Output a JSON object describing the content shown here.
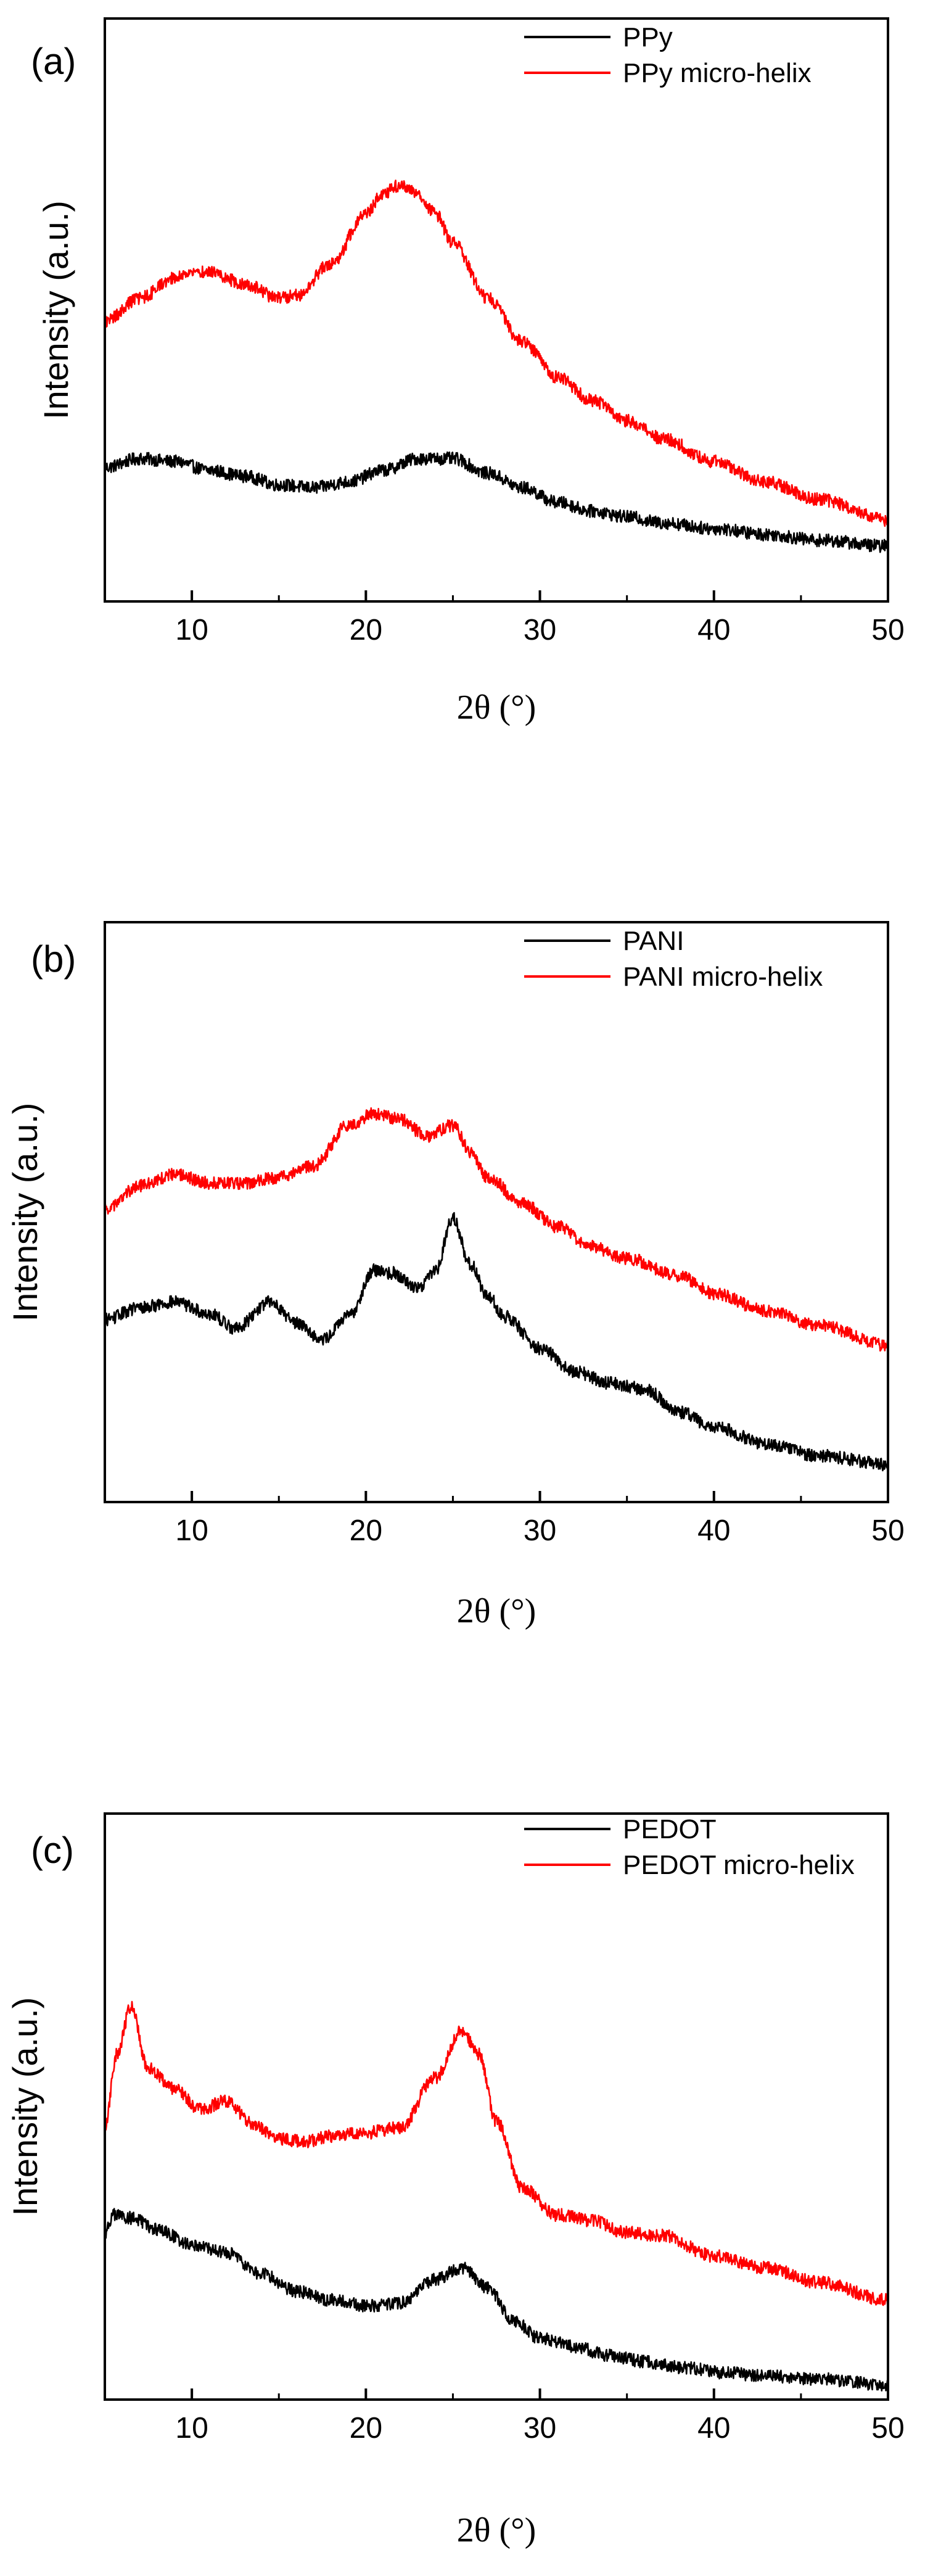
{
  "chart_data": [
    {
      "type": "line",
      "panel_label": "(a)",
      "xlabel": "2θ (°)",
      "ylabel": "Intensity (a.u.)",
      "xlim": [
        5,
        50
      ],
      "ylim": [
        0,
        100
      ],
      "xticks": [
        10,
        20,
        30,
        40,
        50
      ],
      "yticks_visible": false,
      "legend_position": "top-right",
      "series": [
        {
          "name": "PPy",
          "color": "#000000",
          "x": [
            5,
            7,
            9,
            11,
            13,
            15,
            17,
            19,
            21,
            23,
            24,
            25,
            27,
            29,
            31,
            33,
            35,
            37,
            40,
            43,
            46,
            50
          ],
          "y": [
            23,
            24.5,
            24,
            22.5,
            21.5,
            20,
            19.5,
            20.5,
            22.5,
            24.5,
            24.5,
            24.5,
            22,
            19.5,
            17,
            15.5,
            14.5,
            13.5,
            12.5,
            11.5,
            10.5,
            9.5
          ]
        },
        {
          "name": "PPy micro-helix",
          "color": "#ff0000",
          "x": [
            5,
            7,
            9,
            10,
            11,
            13,
            15,
            16,
            18,
            20,
            21,
            22,
            23,
            24,
            25,
            27,
            29,
            31,
            33,
            35,
            37,
            40,
            43,
            46,
            50
          ],
          "y": [
            48,
            52,
            55.5,
            56.5,
            56.5,
            54.5,
            52,
            52.5,
            58,
            66.5,
            70,
            71.5,
            70,
            66.5,
            61.5,
            52,
            44.5,
            38.5,
            34.5,
            31,
            28,
            24,
            20.5,
            17.5,
            14
          ]
        }
      ]
    },
    {
      "type": "line",
      "panel_label": "(b)",
      "xlabel": "2θ (°)",
      "ylabel": "Intensity (a.u.)",
      "xlim": [
        5,
        50
      ],
      "ylim": [
        0,
        100
      ],
      "xticks": [
        10,
        20,
        30,
        40,
        50
      ],
      "yticks_visible": false,
      "legend_position": "top-right",
      "series": [
        {
          "name": "PANI",
          "color": "#000000",
          "x": [
            5,
            7,
            9,
            11,
            12.5,
            14.5,
            16,
            17.5,
            19,
            20.5,
            21.5,
            23,
            24,
            25,
            26,
            27,
            28,
            30,
            32,
            34,
            36,
            38,
            40,
            43,
            46,
            50
          ],
          "y": [
            31.5,
            33.5,
            34.5,
            32.5,
            30,
            34.5,
            31,
            28,
            32,
            40,
            39.5,
            37,
            40,
            49,
            41,
            35.5,
            32,
            26.5,
            22.5,
            20.5,
            19.5,
            15.5,
            13,
            10,
            8,
            6.5
          ]
        },
        {
          "name": "PANI micro-helix",
          "color": "#ff0000",
          "x": [
            5,
            7,
            9,
            11,
            13,
            15,
            17,
            19,
            20.5,
            22,
            23.5,
            25,
            26,
            27,
            29,
            31,
            33,
            35,
            38,
            40,
            43,
            46,
            50
          ],
          "y": [
            50.5,
            54.5,
            56.5,
            55,
            55,
            56,
            58,
            65,
            67,
            66,
            63,
            65,
            60.5,
            56,
            51.5,
            47.5,
            44,
            42,
            39,
            36,
            33,
            30.5,
            27
          ]
        }
      ]
    },
    {
      "type": "line",
      "panel_label": "(c)",
      "xlabel": "2θ (°)",
      "ylabel": "Intensity (a.u.)",
      "xlim": [
        5,
        50
      ],
      "ylim": [
        0,
        100
      ],
      "xticks": [
        10,
        20,
        30,
        40,
        50
      ],
      "yticks_visible": false,
      "legend_position": "top-right",
      "series": [
        {
          "name": "PEDOT",
          "color": "#000000",
          "x": [
            5,
            5.5,
            6.5,
            8,
            10,
            12,
            14,
            16,
            18,
            20,
            22,
            24,
            25.5,
            27,
            28.5,
            30,
            32,
            34,
            36,
            38,
            41,
            43,
            46,
            50
          ],
          "y": [
            28.5,
            31.5,
            31,
            29,
            26.5,
            25,
            21.5,
            18.5,
            17,
            16,
            16.5,
            20.5,
            22.5,
            19,
            13.5,
            10.5,
            9,
            7.5,
            6.5,
            5.5,
            4.5,
            4,
            3.5,
            2.5
          ]
        },
        {
          "name": "PEDOT micro-helix",
          "color": "#ff0000",
          "x": [
            5,
            5.7,
            6.5,
            7.5,
            9,
            10.5,
            12,
            13.5,
            15,
            16.5,
            18,
            20,
            22,
            24,
            25.5,
            26.5,
            27.5,
            29,
            31,
            33,
            35,
            37,
            40,
            43,
            46,
            50
          ],
          "y": [
            46.5,
            59,
            67,
            56.5,
            53,
            49.5,
            51,
            47,
            44.5,
            44,
            45,
            45.5,
            46.5,
            55,
            63,
            59,
            47.5,
            36,
            31.5,
            30.5,
            28.5,
            28,
            24.5,
            22.5,
            20,
            17
          ]
        }
      ]
    }
  ]
}
